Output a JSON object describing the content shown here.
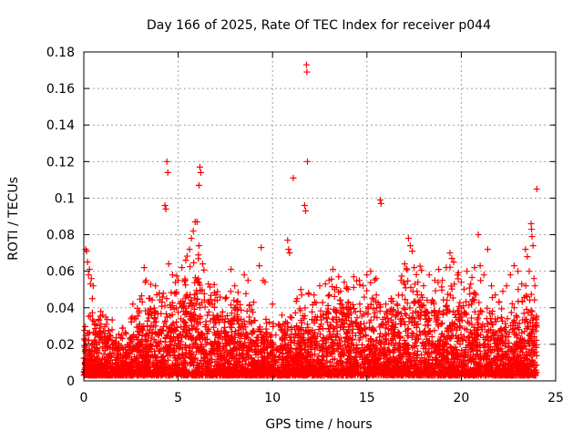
{
  "chart_data": {
    "type": "scatter",
    "title": "Day 166 of 2025, Rate Of TEC Index for receiver p044",
    "xlabel": "GPS time / hours",
    "ylabel": "ROTI / TECUs",
    "xlim": [
      0,
      25
    ],
    "ylim": [
      0,
      0.18
    ],
    "xticks": [
      0,
      5,
      10,
      15,
      20,
      25
    ],
    "xtick_labels": [
      "0",
      "5",
      "10",
      "15",
      "20",
      "25"
    ],
    "yticks": [
      0,
      0.02,
      0.04,
      0.06,
      0.08,
      0.1,
      0.12,
      0.14,
      0.16,
      0.18
    ],
    "ytick_labels": [
      "0",
      "0.02",
      "0.04",
      "0.06",
      "0.08",
      "0.1",
      "0.12",
      "0.14",
      "0.16",
      "0.18"
    ],
    "grid": true,
    "marker": "+",
    "marker_color": "#ff0000",
    "series": [
      {
        "name": "ROTI",
        "points": [
          [
            0.1,
            0.072
          ],
          [
            0.15,
            0.071
          ],
          [
            0.2,
            0.065
          ],
          [
            0.25,
            0.058
          ],
          [
            0.3,
            0.061
          ],
          [
            0.35,
            0.053
          ],
          [
            0.4,
            0.056
          ],
          [
            0.5,
            0.052
          ],
          [
            0.45,
            0.045
          ],
          [
            0.9,
            0.038
          ],
          [
            1.0,
            0.036
          ],
          [
            1.2,
            0.031
          ],
          [
            1.5,
            0.028
          ],
          [
            2.0,
            0.025
          ],
          [
            2.5,
            0.034
          ],
          [
            2.6,
            0.042
          ],
          [
            3.2,
            0.062
          ],
          [
            3.3,
            0.055
          ],
          [
            3.5,
            0.045
          ],
          [
            3.8,
            0.052
          ],
          [
            4.0,
            0.048
          ],
          [
            4.4,
            0.12
          ],
          [
            4.45,
            0.114
          ],
          [
            4.3,
            0.096
          ],
          [
            4.35,
            0.094
          ],
          [
            4.5,
            0.064
          ],
          [
            4.7,
            0.058
          ],
          [
            5.0,
            0.055
          ],
          [
            5.2,
            0.062
          ],
          [
            5.4,
            0.066
          ],
          [
            5.6,
            0.072
          ],
          [
            5.7,
            0.078
          ],
          [
            5.8,
            0.082
          ],
          [
            5.9,
            0.087
          ],
          [
            6.0,
            0.087
          ],
          [
            6.1,
            0.074
          ],
          [
            6.15,
            0.117
          ],
          [
            6.2,
            0.114
          ],
          [
            6.1,
            0.107
          ],
          [
            6.3,
            0.064
          ],
          [
            6.6,
            0.053
          ],
          [
            7.0,
            0.047
          ],
          [
            7.5,
            0.045
          ],
          [
            7.8,
            0.061
          ],
          [
            8.0,
            0.052
          ],
          [
            8.5,
            0.058
          ],
          [
            8.7,
            0.055
          ],
          [
            9.0,
            0.043
          ],
          [
            9.3,
            0.063
          ],
          [
            9.5,
            0.055
          ],
          [
            9.6,
            0.054
          ],
          [
            9.4,
            0.073
          ],
          [
            10.0,
            0.042
          ],
          [
            10.5,
            0.036
          ],
          [
            10.8,
            0.077
          ],
          [
            10.85,
            0.072
          ],
          [
            10.9,
            0.07
          ],
          [
            11.1,
            0.111
          ],
          [
            11.3,
            0.045
          ],
          [
            11.5,
            0.05
          ],
          [
            11.7,
            0.096
          ],
          [
            11.75,
            0.093
          ],
          [
            11.8,
            0.173
          ],
          [
            11.82,
            0.169
          ],
          [
            11.85,
            0.12
          ],
          [
            11.9,
            0.048
          ],
          [
            12.2,
            0.047
          ],
          [
            12.5,
            0.052
          ],
          [
            12.8,
            0.053
          ],
          [
            13.0,
            0.055
          ],
          [
            13.2,
            0.061
          ],
          [
            13.5,
            0.057
          ],
          [
            13.8,
            0.054
          ],
          [
            14.0,
            0.05
          ],
          [
            14.3,
            0.057
          ],
          [
            14.6,
            0.055
          ],
          [
            14.8,
            0.052
          ],
          [
            15.0,
            0.058
          ],
          [
            15.2,
            0.06
          ],
          [
            15.5,
            0.047
          ],
          [
            15.7,
            0.099
          ],
          [
            15.75,
            0.097
          ],
          [
            16.0,
            0.042
          ],
          [
            16.3,
            0.045
          ],
          [
            16.6,
            0.042
          ],
          [
            16.8,
            0.055
          ],
          [
            17.0,
            0.064
          ],
          [
            17.2,
            0.078
          ],
          [
            17.3,
            0.074
          ],
          [
            17.4,
            0.071
          ],
          [
            17.5,
            0.062
          ],
          [
            17.7,
            0.054
          ],
          [
            18.0,
            0.052
          ],
          [
            18.3,
            0.058
          ],
          [
            18.6,
            0.055
          ],
          [
            18.8,
            0.061
          ],
          [
            19.0,
            0.055
          ],
          [
            19.2,
            0.062
          ],
          [
            19.4,
            0.07
          ],
          [
            19.5,
            0.067
          ],
          [
            19.6,
            0.065
          ],
          [
            19.8,
            0.058
          ],
          [
            20.0,
            0.054
          ],
          [
            20.3,
            0.06
          ],
          [
            20.5,
            0.053
          ],
          [
            20.7,
            0.062
          ],
          [
            20.9,
            0.08
          ],
          [
            21.0,
            0.063
          ],
          [
            21.2,
            0.058
          ],
          [
            21.4,
            0.072
          ],
          [
            21.6,
            0.052
          ],
          [
            21.8,
            0.047
          ],
          [
            22.0,
            0.043
          ],
          [
            22.2,
            0.049
          ],
          [
            22.4,
            0.052
          ],
          [
            22.6,
            0.058
          ],
          [
            22.8,
            0.063
          ],
          [
            23.0,
            0.06
          ],
          [
            23.2,
            0.053
          ],
          [
            23.4,
            0.072
          ],
          [
            23.5,
            0.068
          ],
          [
            23.6,
            0.06
          ],
          [
            23.7,
            0.086
          ],
          [
            23.72,
            0.083
          ],
          [
            23.75,
            0.079
          ],
          [
            23.8,
            0.074
          ],
          [
            23.85,
            0.056
          ],
          [
            23.9,
            0.052
          ],
          [
            24.0,
            0.105
          ]
        ],
        "baseline_envelope": [
          [
            0.0,
            0.03
          ],
          [
            0.5,
            0.026
          ],
          [
            1.0,
            0.032
          ],
          [
            1.5,
            0.022
          ],
          [
            2.0,
            0.02
          ],
          [
            2.5,
            0.028
          ],
          [
            3.0,
            0.036
          ],
          [
            3.5,
            0.04
          ],
          [
            4.0,
            0.038
          ],
          [
            4.5,
            0.045
          ],
          [
            5.0,
            0.048
          ],
          [
            5.5,
            0.05
          ],
          [
            6.0,
            0.052
          ],
          [
            6.5,
            0.043
          ],
          [
            7.0,
            0.036
          ],
          [
            7.5,
            0.034
          ],
          [
            8.0,
            0.038
          ],
          [
            8.5,
            0.036
          ],
          [
            9.0,
            0.03
          ],
          [
            9.5,
            0.028
          ],
          [
            10.0,
            0.024
          ],
          [
            10.5,
            0.025
          ],
          [
            11.0,
            0.032
          ],
          [
            11.5,
            0.034
          ],
          [
            12.0,
            0.036
          ],
          [
            12.5,
            0.038
          ],
          [
            13.0,
            0.04
          ],
          [
            13.5,
            0.042
          ],
          [
            14.0,
            0.04
          ],
          [
            14.5,
            0.042
          ],
          [
            15.0,
            0.044
          ],
          [
            15.5,
            0.04
          ],
          [
            16.0,
            0.036
          ],
          [
            16.5,
            0.038
          ],
          [
            17.0,
            0.045
          ],
          [
            17.5,
            0.05
          ],
          [
            18.0,
            0.045
          ],
          [
            18.5,
            0.042
          ],
          [
            19.0,
            0.042
          ],
          [
            19.5,
            0.045
          ],
          [
            20.0,
            0.042
          ],
          [
            20.5,
            0.04
          ],
          [
            21.0,
            0.042
          ],
          [
            21.5,
            0.036
          ],
          [
            22.0,
            0.032
          ],
          [
            22.5,
            0.03
          ],
          [
            23.0,
            0.034
          ],
          [
            23.5,
            0.038
          ],
          [
            24.0,
            0.034
          ]
        ]
      }
    ]
  }
}
